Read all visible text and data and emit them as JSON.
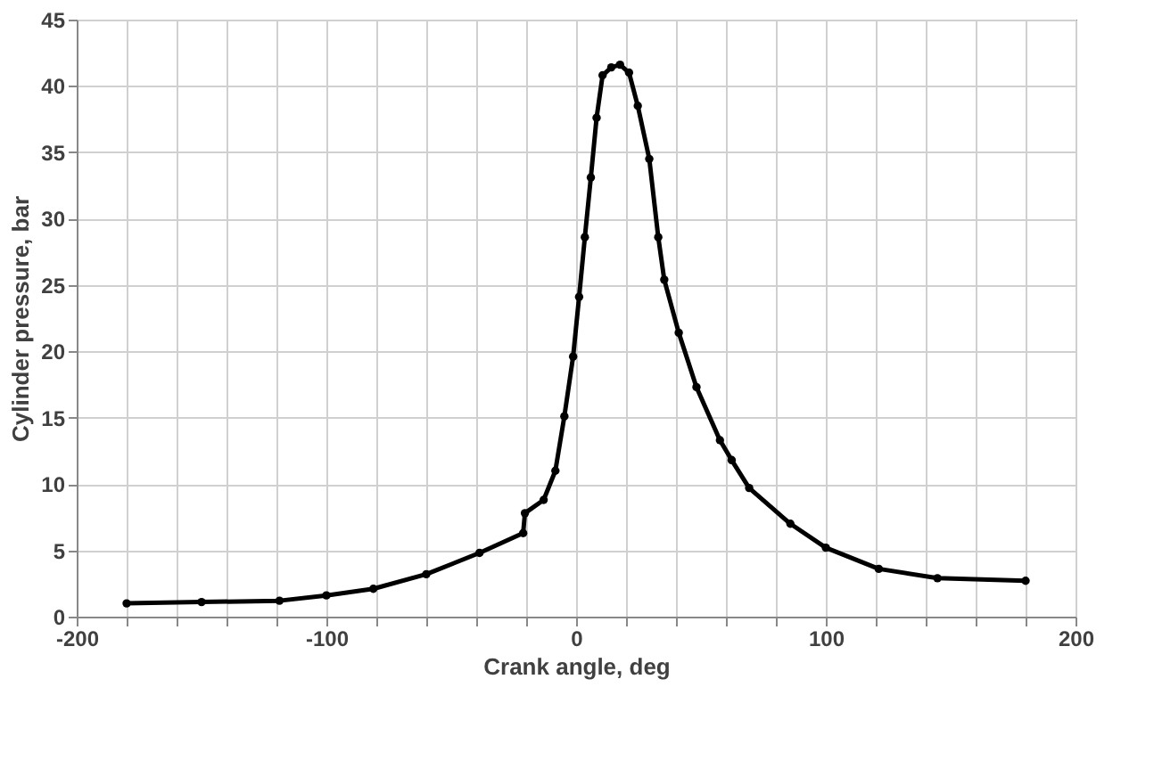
{
  "chart_data": {
    "type": "line",
    "xlabel": "Crank angle, deg",
    "ylabel": "Cylinder pressure, bar",
    "x": [
      -180,
      -150,
      -118.8,
      -100,
      -81.2,
      -60,
      -38.7,
      -21.2,
      -20.5,
      -13,
      -8.3,
      -4.7,
      -1.2,
      1.2,
      3.5,
      5.9,
      8.2,
      10.6,
      14.1,
      17.6,
      21.2,
      24.7,
      29.3,
      32.9,
      35.3,
      41.1,
      48.2,
      57.6,
      62.3,
      69.3,
      85.8,
      100,
      121.2,
      144.7,
      180
    ],
    "series": [
      {
        "color": "#000000",
        "values": [
          1.0,
          1.1,
          1.2,
          1.6,
          2.1,
          3.2,
          4.8,
          6.3,
          7.8,
          8.8,
          11.0,
          15.1,
          19.6,
          24.1,
          28.6,
          33.1,
          37.6,
          40.8,
          41.4,
          41.6,
          41.0,
          38.5,
          34.5,
          28.6,
          25.4,
          21.4,
          17.3,
          13.3,
          11.8,
          9.7,
          7.0,
          5.2,
          3.6,
          2.9,
          2.7
        ]
      }
    ],
    "xlim": [
      -200,
      200
    ],
    "xticks": [
      -200,
      {
        "value": -180,
        "label": null
      },
      {
        "value": -160,
        "label": null
      },
      {
        "value": -140,
        "label": null
      },
      {
        "value": -120,
        "label": null
      },
      -100,
      {
        "value": -80,
        "label": null
      },
      {
        "value": -60,
        "label": null
      },
      {
        "value": -40,
        "label": null
      },
      {
        "value": -20,
        "label": null
      },
      0,
      {
        "value": 20,
        "label": null
      },
      {
        "value": 40,
        "label": null
      },
      {
        "value": 60,
        "label": null
      },
      {
        "value": 80,
        "label": null
      },
      100,
      {
        "value": 120,
        "label": null
      },
      {
        "value": 140,
        "label": null
      },
      {
        "value": 160,
        "label": null
      },
      {
        "value": 180,
        "label": null
      },
      200
    ],
    "ylim": [
      0,
      45
    ],
    "yticks": [
      0,
      5,
      10,
      15,
      20,
      25,
      30,
      35,
      40,
      45
    ],
    "grid": true,
    "marker": "circle",
    "line_style": "solid"
  }
}
